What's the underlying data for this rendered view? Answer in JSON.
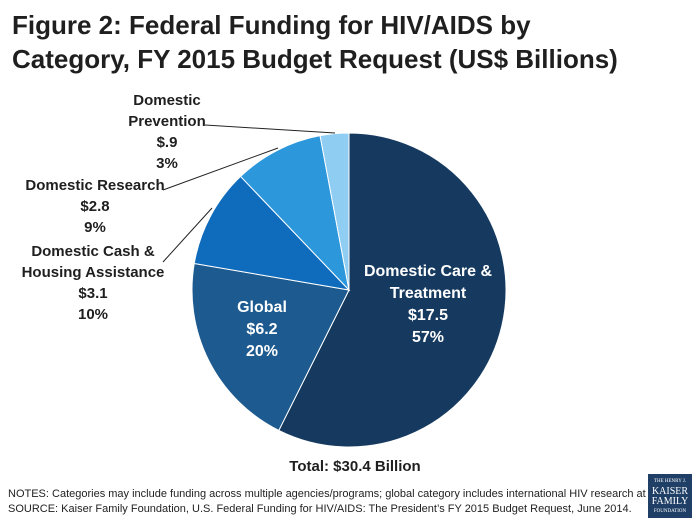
{
  "chart_data": {
    "type": "pie",
    "title": "Figure 2: Federal Funding for HIV/AIDS by Category, FY 2015 Budget Request (US$ Billions)",
    "categories": [
      "Domestic Care & Treatment",
      "Global",
      "Domestic Cash & Housing Assistance",
      "Domestic Research",
      "Domestic Prevention"
    ],
    "values": [
      17.5,
      6.2,
      3.1,
      2.8,
      0.9
    ],
    "value_labels": [
      "$17.5",
      "$6.2",
      "$3.1",
      "$2.8",
      "$.9"
    ],
    "percents": [
      57,
      20,
      10,
      9,
      3
    ],
    "percent_labels": [
      "57%",
      "20%",
      "10%",
      "9%",
      "3%"
    ],
    "colors": [
      "#163a5f",
      "#1d5a8f",
      "#0f6cbd",
      "#2d97dc",
      "#8fcdf2"
    ],
    "total_label": "Total: $30.4 Billion",
    "notes": "NOTES: Categories may include funding across multiple agencies/programs; global category includes international HIV research at NIH.",
    "source": "SOURCE: Kaiser Family Foundation, U.S. Federal Funding for HIV/AIDS: The President’s FY 2015 Budget Request, June 2014."
  },
  "logo": {
    "top": "THE HENRY J.",
    "line1": "KAISER",
    "line2": "FAMILY",
    "bottom": "FOUNDATION"
  }
}
